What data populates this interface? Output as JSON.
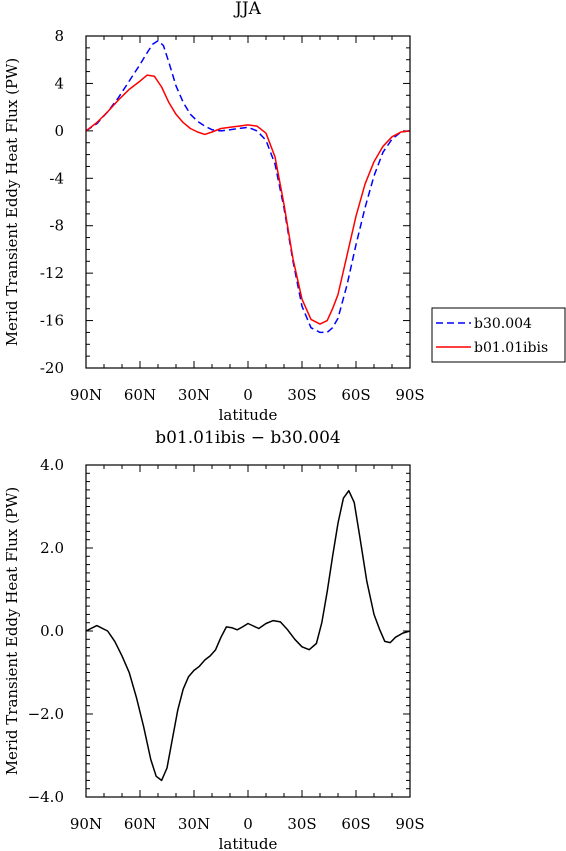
{
  "chart_data": [
    {
      "type": "line",
      "title": "JJA",
      "xlabel": "latitude",
      "ylabel": "Merid Transient Eddy Heat Flux (PW)",
      "x_ticks": [
        "90N",
        "60N",
        "30N",
        "0",
        "30S",
        "60S",
        "90S"
      ],
      "xlim": [
        90,
        -90
      ],
      "ylim": [
        -20,
        8
      ],
      "y_ticks": [
        "8",
        "4",
        "0",
        "-4",
        "-8",
        "-12",
        "-16",
        "-20"
      ],
      "legend_position": "right",
      "series": [
        {
          "name": "b30.004",
          "color": "#0000ff",
          "style": "dashed",
          "x": [
            90,
            84,
            78,
            72,
            66,
            60,
            56,
            53,
            50,
            47,
            44,
            40,
            36,
            32,
            28,
            24,
            20,
            15,
            10,
            5,
            0,
            -5,
            -10,
            -15,
            -20,
            -25,
            -30,
            -35,
            -40,
            -44,
            -47,
            -50,
            -55,
            -60,
            -65,
            -70,
            -75,
            -80,
            -85,
            -90
          ],
          "y": [
            0.0,
            0.6,
            1.6,
            2.8,
            4.2,
            5.6,
            6.6,
            7.3,
            7.6,
            7.2,
            5.8,
            3.8,
            2.4,
            1.4,
            0.8,
            0.4,
            0.1,
            0.0,
            0.1,
            0.2,
            0.3,
            0.0,
            -0.8,
            -2.8,
            -6.5,
            -11.0,
            -14.8,
            -16.6,
            -17.0,
            -17.0,
            -16.6,
            -15.8,
            -13.0,
            -9.6,
            -6.5,
            -3.8,
            -1.8,
            -0.7,
            -0.1,
            0.0
          ]
        },
        {
          "name": "b01.01ibis",
          "color": "#ff0000",
          "style": "solid",
          "x": [
            90,
            84,
            78,
            72,
            66,
            60,
            56,
            52,
            48,
            44,
            40,
            36,
            32,
            28,
            24,
            20,
            15,
            10,
            5,
            0,
            -5,
            -10,
            -15,
            -20,
            -25,
            -30,
            -35,
            -40,
            -44,
            -47,
            -50,
            -55,
            -60,
            -65,
            -70,
            -75,
            -80,
            -85,
            -90
          ],
          "y": [
            0.0,
            0.7,
            1.6,
            2.6,
            3.5,
            4.2,
            4.7,
            4.6,
            3.7,
            2.4,
            1.4,
            0.7,
            0.2,
            -0.1,
            -0.3,
            -0.1,
            0.2,
            0.3,
            0.4,
            0.5,
            0.4,
            -0.2,
            -2.2,
            -6.2,
            -10.8,
            -14.2,
            -15.9,
            -16.3,
            -16.0,
            -15.0,
            -13.8,
            -10.5,
            -7.2,
            -4.5,
            -2.6,
            -1.3,
            -0.5,
            -0.1,
            0.0
          ]
        }
      ]
    },
    {
      "type": "line",
      "title": "b01.01ibis − b30.004",
      "xlabel": "latitude",
      "ylabel": "Merid Transient Eddy Heat Flux (PW)",
      "x_ticks": [
        "90N",
        "60N",
        "30N",
        "0",
        "30S",
        "60S",
        "90S"
      ],
      "xlim": [
        90,
        -90
      ],
      "ylim": [
        -4,
        4
      ],
      "y_ticks": [
        "4.0",
        "2.0",
        "0.0",
        "−2.0",
        "−4.0"
      ],
      "series": [
        {
          "color": "#000000",
          "style": "solid",
          "x": [
            90,
            84,
            78,
            74,
            70,
            66,
            62,
            58,
            54,
            51,
            48,
            45,
            42,
            39,
            36,
            33,
            30,
            27,
            24,
            21,
            18,
            15,
            12,
            9,
            6,
            3,
            0,
            -3,
            -6,
            -10,
            -14,
            -18,
            -22,
            -26,
            -30,
            -34,
            -38,
            -41,
            -44,
            -47,
            -50,
            -53,
            -56,
            -59,
            -62,
            -66,
            -70,
            -73,
            -76,
            -79,
            -82,
            -86,
            -90
          ],
          "y": [
            0.0,
            0.13,
            0.0,
            -0.25,
            -0.6,
            -1.0,
            -1.6,
            -2.3,
            -3.1,
            -3.5,
            -3.6,
            -3.3,
            -2.6,
            -1.9,
            -1.4,
            -1.1,
            -0.95,
            -0.85,
            -0.7,
            -0.6,
            -0.45,
            -0.15,
            0.1,
            0.08,
            0.03,
            0.1,
            0.18,
            0.12,
            0.06,
            0.18,
            0.25,
            0.22,
            0.03,
            -0.2,
            -0.38,
            -0.45,
            -0.3,
            0.2,
            0.95,
            1.8,
            2.6,
            3.2,
            3.38,
            3.1,
            2.3,
            1.2,
            0.4,
            0.05,
            -0.25,
            -0.28,
            -0.15,
            -0.05,
            0.0
          ]
        }
      ]
    }
  ]
}
